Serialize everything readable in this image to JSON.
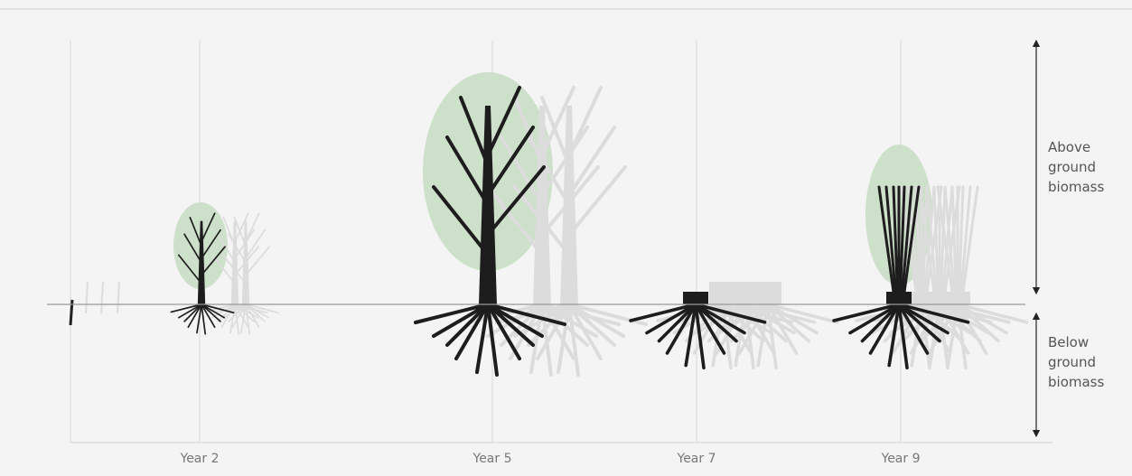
{
  "x_labels": [
    "Year 2",
    "Year 5",
    "Year 7",
    "Year 9"
  ],
  "annotations": {
    "above": "Above ground biomass",
    "below": "Below ground biomass"
  }
}
